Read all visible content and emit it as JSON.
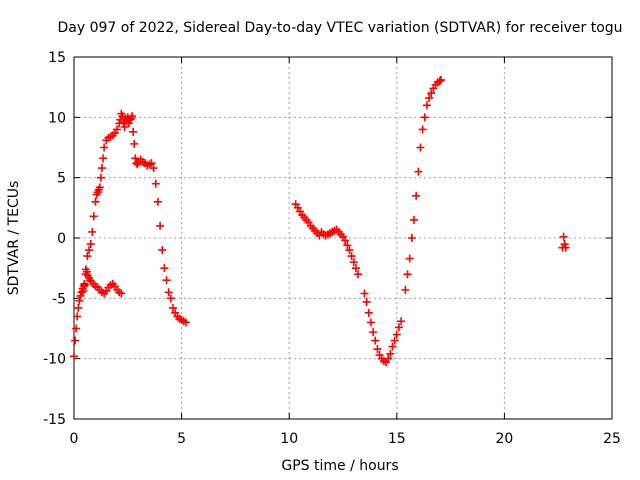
{
  "chart_data": {
    "type": "scatter",
    "title": "Day 097 of 2022, Sidereal Day-to-day VTEC variation (SDTVAR) for receiver togu",
    "xlabel": "GPS time / hours",
    "ylabel": "SDTVAR / TECUs",
    "xlim": [
      0,
      25
    ],
    "ylim": [
      -15,
      15
    ],
    "xticks": [
      0,
      5,
      10,
      15,
      20,
      25
    ],
    "yticks": [
      -15,
      -10,
      -5,
      0,
      5,
      10,
      15
    ],
    "xtick_labels": [
      "0",
      "5",
      "10",
      "15",
      "20",
      "25"
    ],
    "ytick_labels": [
      "-15",
      "-10",
      "-5",
      "0",
      "5",
      "10",
      "15"
    ],
    "grid": true,
    "marker": "+",
    "series": [
      {
        "name": "SDTVAR",
        "color": "#ff0000",
        "x": [
          0.0,
          0.05,
          0.1,
          0.15,
          0.2,
          0.25,
          0.3,
          0.35,
          0.4,
          0.45,
          0.5,
          0.55,
          0.6,
          0.65,
          0.7,
          0.75,
          0.8,
          0.9,
          1.0,
          1.1,
          1.2,
          1.3,
          1.4,
          1.5,
          1.6,
          1.7,
          1.8,
          1.9,
          2.0,
          2.1,
          2.2,
          0.42,
          0.48,
          0.55,
          0.62,
          0.7,
          0.78,
          0.85,
          0.92,
          1.0,
          1.05,
          1.1,
          1.15,
          1.2,
          1.25,
          1.3,
          1.35,
          1.4,
          1.5,
          1.6,
          1.7,
          1.8,
          1.9,
          2.0,
          2.1,
          2.15,
          2.2,
          2.25,
          2.3,
          2.35,
          2.4,
          2.45,
          2.5,
          2.55,
          2.6,
          2.65,
          2.7,
          2.75,
          2.8,
          2.85,
          2.9,
          2.95,
          3.0,
          3.1,
          3.2,
          3.3,
          3.4,
          3.5,
          3.6,
          3.7,
          3.8,
          3.9,
          4.0,
          4.1,
          4.2,
          4.3,
          4.4,
          4.5,
          4.6,
          4.7,
          4.8,
          4.9,
          5.0,
          5.1,
          5.2,
          10.3,
          10.4,
          10.5,
          10.6,
          10.7,
          10.8,
          10.9,
          11.0,
          11.1,
          11.2,
          11.3,
          11.4,
          11.5,
          11.6,
          11.7,
          11.8,
          11.9,
          12.0,
          12.1,
          12.2,
          12.3,
          12.4,
          12.5,
          12.6,
          12.7,
          12.8,
          12.9,
          13.0,
          13.1,
          13.2,
          13.5,
          13.6,
          13.7,
          13.8,
          13.9,
          14.0,
          14.1,
          14.2,
          14.3,
          14.4,
          14.5,
          14.6,
          14.7,
          14.8,
          14.9,
          15.0,
          15.1,
          15.2,
          15.4,
          15.5,
          15.6,
          15.7,
          15.8,
          15.9,
          16.0,
          16.1,
          16.2,
          16.3,
          16.4,
          16.5,
          16.6,
          16.7,
          16.8,
          16.9,
          17.0,
          17.05,
          22.7,
          22.75,
          22.8,
          22.85
        ],
        "y": [
          -9.8,
          -8.5,
          -7.5,
          -6.5,
          -5.8,
          -5.2,
          -4.8,
          -4.5,
          -4.2,
          -4.0,
          -3.9,
          -3.0,
          -2.8,
          -3.1,
          -3.3,
          -3.5,
          -3.6,
          -3.8,
          -4.0,
          -4.1,
          -4.3,
          -4.5,
          -4.6,
          -4.4,
          -4.1,
          -3.9,
          -3.8,
          -4.0,
          -4.3,
          -4.5,
          -4.6,
          -4.4,
          -3.8,
          -2.6,
          -1.5,
          -1.0,
          -0.5,
          0.5,
          1.8,
          3.0,
          3.6,
          3.8,
          4.0,
          4.2,
          5.0,
          5.8,
          6.6,
          7.5,
          8.1,
          8.3,
          8.4,
          8.5,
          8.7,
          9.0,
          9.5,
          9.8,
          10.3,
          10.1,
          9.6,
          9.2,
          9.9,
          9.7,
          10.0,
          9.5,
          9.8,
          9.9,
          10.1,
          8.8,
          7.8,
          6.6,
          6.2,
          6.1,
          6.3,
          6.5,
          6.3,
          6.2,
          6.0,
          6.1,
          6.2,
          5.8,
          4.5,
          3.0,
          1.0,
          -1.0,
          -2.5,
          -3.5,
          -4.5,
          -5.0,
          -5.8,
          -6.2,
          -6.5,
          -6.7,
          -6.8,
          -6.9,
          -7.0,
          2.8,
          2.5,
          2.2,
          1.9,
          1.7,
          1.5,
          1.3,
          1.0,
          0.8,
          0.6,
          0.4,
          0.2,
          0.5,
          0.3,
          0.2,
          0.3,
          0.4,
          0.5,
          0.6,
          0.7,
          0.5,
          0.3,
          0.1,
          -0.2,
          -0.6,
          -1.0,
          -1.5,
          -2.0,
          -2.5,
          -3.0,
          -4.6,
          -5.3,
          -6.2,
          -7.0,
          -7.8,
          -8.5,
          -9.2,
          -9.7,
          -10.0,
          -10.2,
          -10.3,
          -10.0,
          -9.6,
          -9.0,
          -8.5,
          -8.0,
          -7.4,
          -6.9,
          -4.3,
          -3.0,
          -1.7,
          0.0,
          1.5,
          3.5,
          5.5,
          7.5,
          9.0,
          10.0,
          11.0,
          11.6,
          12.0,
          12.4,
          12.7,
          12.9,
          13.0,
          13.1,
          -0.8,
          0.1,
          -0.5,
          -0.8
        ]
      }
    ]
  }
}
